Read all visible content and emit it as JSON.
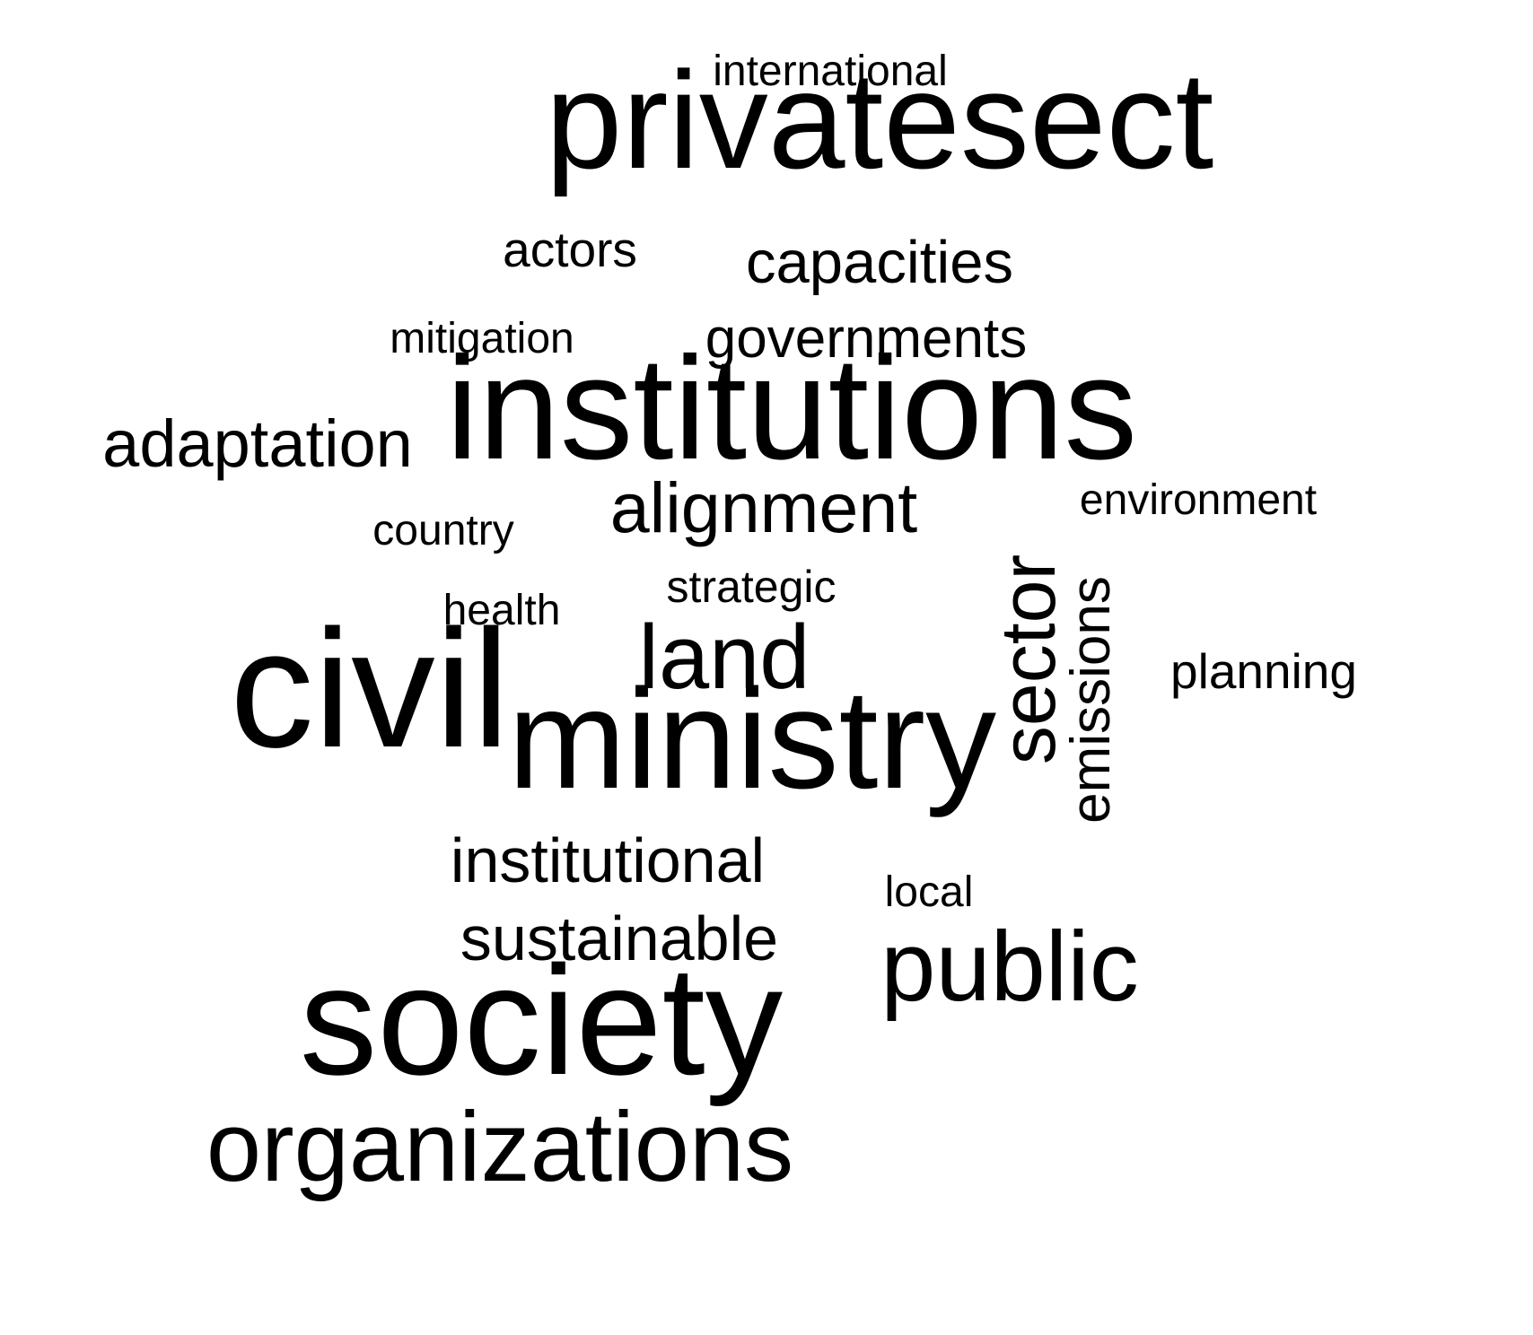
{
  "chart_data": {
    "type": "wordcloud",
    "text_color": "#000000",
    "background_color": "#ffffff",
    "words": [
      {
        "text": "international",
        "weight": 1.0,
        "orientation": "horizontal"
      },
      {
        "text": "privatesect",
        "weight": 3.2,
        "orientation": "horizontal"
      },
      {
        "text": "actors",
        "weight": 1.15,
        "orientation": "horizontal"
      },
      {
        "text": "capacities",
        "weight": 1.4,
        "orientation": "horizontal"
      },
      {
        "text": "mitigation",
        "weight": 1.0,
        "orientation": "horizontal"
      },
      {
        "text": "governments",
        "weight": 1.3,
        "orientation": "horizontal"
      },
      {
        "text": "institutions",
        "weight": 3.4,
        "orientation": "horizontal"
      },
      {
        "text": "adaptation",
        "weight": 1.55,
        "orientation": "horizontal"
      },
      {
        "text": "alignment",
        "weight": 1.65,
        "orientation": "horizontal"
      },
      {
        "text": "environment",
        "weight": 1.0,
        "orientation": "horizontal"
      },
      {
        "text": "country",
        "weight": 1.0,
        "orientation": "horizontal"
      },
      {
        "text": "strategic",
        "weight": 1.05,
        "orientation": "horizontal"
      },
      {
        "text": "health",
        "weight": 1.0,
        "orientation": "horizontal"
      },
      {
        "text": "sector",
        "weight": 1.8,
        "orientation": "vertical"
      },
      {
        "text": "emissions",
        "weight": 1.3,
        "orientation": "vertical"
      },
      {
        "text": "land",
        "weight": 2.1,
        "orientation": "horizontal"
      },
      {
        "text": "planning",
        "weight": 1.15,
        "orientation": "horizontal"
      },
      {
        "text": "civil",
        "weight": 3.9,
        "orientation": "horizontal"
      },
      {
        "text": "ministry",
        "weight": 3.3,
        "orientation": "horizontal"
      },
      {
        "text": "institutional",
        "weight": 1.45,
        "orientation": "horizontal"
      },
      {
        "text": "local",
        "weight": 1.0,
        "orientation": "horizontal"
      },
      {
        "text": "sustainable",
        "weight": 1.45,
        "orientation": "horizontal"
      },
      {
        "text": "public",
        "weight": 2.3,
        "orientation": "horizontal"
      },
      {
        "text": "society",
        "weight": 3.6,
        "orientation": "horizontal"
      },
      {
        "text": "organizations",
        "weight": 2.3,
        "orientation": "horizontal"
      }
    ]
  }
}
